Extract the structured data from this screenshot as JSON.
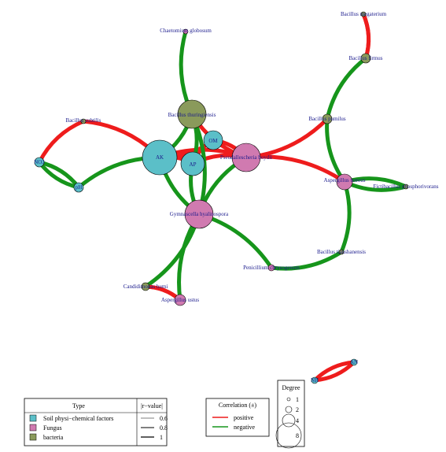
{
  "colors": {
    "positive": "#ee1c1c",
    "negative": "#16951b",
    "soil": "#5bbfc8",
    "fungus": "#d07ab0",
    "bacteria": "#8a9a5b",
    "label": "#1a1a8c"
  },
  "nodes": [
    {
      "id": "chaetomium",
      "label": "Chaetomium globosum",
      "type": "fungus"
    },
    {
      "id": "b_megaterium",
      "label": "Bacillus megaterium",
      "type": "bacteria"
    },
    {
      "id": "b_firmus",
      "label": "Bacillus firmus",
      "type": "bacteria"
    },
    {
      "id": "b_thuringiensis",
      "label": "Bacillus thuringiensis",
      "type": "bacteria"
    },
    {
      "id": "b_subtilis",
      "label": "Bacillus subtilis",
      "type": "bacteria"
    },
    {
      "id": "b_pumilus",
      "label": "Bacillus pumilus",
      "type": "bacteria"
    },
    {
      "id": "om",
      "label": "OM",
      "type": "soil"
    },
    {
      "id": "ak",
      "label": "AK",
      "type": "soil"
    },
    {
      "id": "ap",
      "label": "AP",
      "type": "soil"
    },
    {
      "id": "pseudallescheria",
      "label": "Pseudallescheria boydii",
      "type": "fungus"
    },
    {
      "id": "no3",
      "label": "NO3",
      "type": "soil"
    },
    {
      "id": "ph",
      "label": "pH",
      "type": "soil"
    },
    {
      "id": "a_terreus",
      "label": "Aspergillus terreus",
      "type": "fungus"
    },
    {
      "id": "fictibacillus",
      "label": "Fictibacillus phosphorivorans",
      "type": "bacteria"
    },
    {
      "id": "gymnascella",
      "label": "Gymnascella hyalinospora",
      "type": "fungus"
    },
    {
      "id": "b_tianshanensis",
      "label": "Bacillus tianshanensis",
      "type": "bacteria"
    },
    {
      "id": "penicillium",
      "label": "Penicillium chrysogenum",
      "type": "fungus"
    },
    {
      "id": "candidimonas",
      "label": "Candidimonas humi",
      "type": "bacteria"
    },
    {
      "id": "a_ustus",
      "label": "Aspergillus ustus",
      "type": "fungus"
    },
    {
      "id": "nh",
      "label": "NH",
      "type": "soil"
    },
    {
      "id": "an",
      "label": "AN",
      "type": "soil"
    }
  ],
  "edges": [
    {
      "from": "chaetomium",
      "to": "b_thuringiensis",
      "sign": "negative"
    },
    {
      "from": "b_megaterium",
      "to": "b_firmus",
      "sign": "positive"
    },
    {
      "from": "b_firmus",
      "to": "b_pumilus",
      "sign": "negative"
    },
    {
      "from": "b_pumilus",
      "to": "pseudallescheria",
      "sign": "positive"
    },
    {
      "from": "b_pumilus",
      "to": "a_terreus",
      "sign": "negative"
    },
    {
      "from": "pseudallescheria",
      "to": "a_terreus",
      "sign": "positive"
    },
    {
      "from": "a_terreus",
      "to": "fictibacillus",
      "sign": "negative"
    },
    {
      "from": "a_terreus",
      "to": "b_tianshanensis",
      "sign": "negative"
    },
    {
      "from": "b_subtilis",
      "to": "no3",
      "sign": "positive"
    },
    {
      "from": "b_subtilis",
      "to": "ak",
      "sign": "positive"
    },
    {
      "from": "no3",
      "to": "ph",
      "sign": "negative"
    },
    {
      "from": "ph",
      "to": "ak",
      "sign": "negative"
    },
    {
      "from": "ak",
      "to": "b_thuringiensis",
      "sign": "negative"
    },
    {
      "from": "ak",
      "to": "ap",
      "sign": "positive"
    },
    {
      "from": "ak",
      "to": "om",
      "sign": "positive"
    },
    {
      "from": "ak",
      "to": "pseudallescheria",
      "sign": "positive"
    },
    {
      "from": "ak",
      "to": "gymnascella",
      "sign": "negative"
    },
    {
      "from": "ap",
      "to": "om",
      "sign": "positive"
    },
    {
      "from": "ap",
      "to": "b_thuringiensis",
      "sign": "negative"
    },
    {
      "from": "ap",
      "to": "pseudallescheria",
      "sign": "positive"
    },
    {
      "from": "ap",
      "to": "gymnascella",
      "sign": "negative"
    },
    {
      "from": "om",
      "to": "pseudallescheria",
      "sign": "positive"
    },
    {
      "from": "b_thuringiensis",
      "to": "pseudallescheria",
      "sign": "positive"
    },
    {
      "from": "b_thuringiensis",
      "to": "gymnascella",
      "sign": "negative"
    },
    {
      "from": "pseudallescheria",
      "to": "gymnascella",
      "sign": "negative"
    },
    {
      "from": "gymnascella",
      "to": "penicillium",
      "sign": "negative"
    },
    {
      "from": "penicillium",
      "to": "b_tianshanensis",
      "sign": "negative"
    },
    {
      "from": "gymnascella",
      "to": "candidimonas",
      "sign": "negative"
    },
    {
      "from": "gymnascella",
      "to": "a_ustus",
      "sign": "negative"
    },
    {
      "from": "candidimonas",
      "to": "a_ustus",
      "sign": "positive"
    },
    {
      "from": "nh",
      "to": "an",
      "sign": "positive"
    }
  ],
  "legend_type": {
    "title": "Type",
    "items": [
      {
        "label": "Soil physi−chemical factors",
        "type": "soil"
      },
      {
        "label": "Fungus",
        "type": "fungus"
      },
      {
        "label": "bacteria",
        "type": "bacteria"
      }
    ]
  },
  "legend_r": {
    "title": "|r−value|",
    "items": [
      "0.6",
      "0.8",
      "1"
    ]
  },
  "legend_corr": {
    "title": "Correlation (±)",
    "items": [
      {
        "label": "positive",
        "sign": "positive"
      },
      {
        "label": "negative",
        "sign": "negative"
      }
    ]
  },
  "legend_degree": {
    "title": "Degree",
    "items": [
      "1",
      "2",
      "4",
      "8"
    ]
  }
}
